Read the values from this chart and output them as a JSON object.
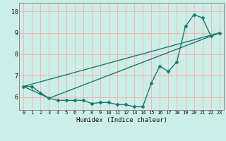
{
  "background_color": "#cceee8",
  "grid_color": "#ffaaaa",
  "line_color": "#1a7a6e",
  "marker": "D",
  "marker_size": 2.5,
  "xlabel": "Humidex (Indice chaleur)",
  "xlim": [
    -0.5,
    23.5
  ],
  "ylim": [
    5.4,
    10.4
  ],
  "yticks": [
    6,
    7,
    8,
    9,
    10
  ],
  "xticks": [
    0,
    1,
    2,
    3,
    4,
    5,
    6,
    7,
    8,
    9,
    10,
    11,
    12,
    13,
    14,
    15,
    16,
    17,
    18,
    19,
    20,
    21,
    22,
    23
  ],
  "line1_x": [
    0,
    1,
    2,
    3,
    4,
    5,
    6,
    7,
    8,
    9,
    10,
    11,
    12,
    13,
    14,
    15,
    16,
    17,
    18,
    19,
    20,
    21,
    22,
    23
  ],
  "line1_y": [
    6.5,
    6.5,
    6.2,
    5.95,
    5.85,
    5.85,
    5.85,
    5.85,
    5.7,
    5.75,
    5.75,
    5.65,
    5.65,
    5.55,
    5.55,
    6.65,
    7.45,
    7.2,
    7.65,
    9.3,
    9.85,
    9.7,
    8.85,
    9.0
  ],
  "line2_x": [
    0,
    3,
    23
  ],
  "line2_y": [
    6.5,
    5.95,
    9.0
  ],
  "line3_x": [
    0,
    23
  ],
  "line3_y": [
    6.5,
    9.0
  ]
}
